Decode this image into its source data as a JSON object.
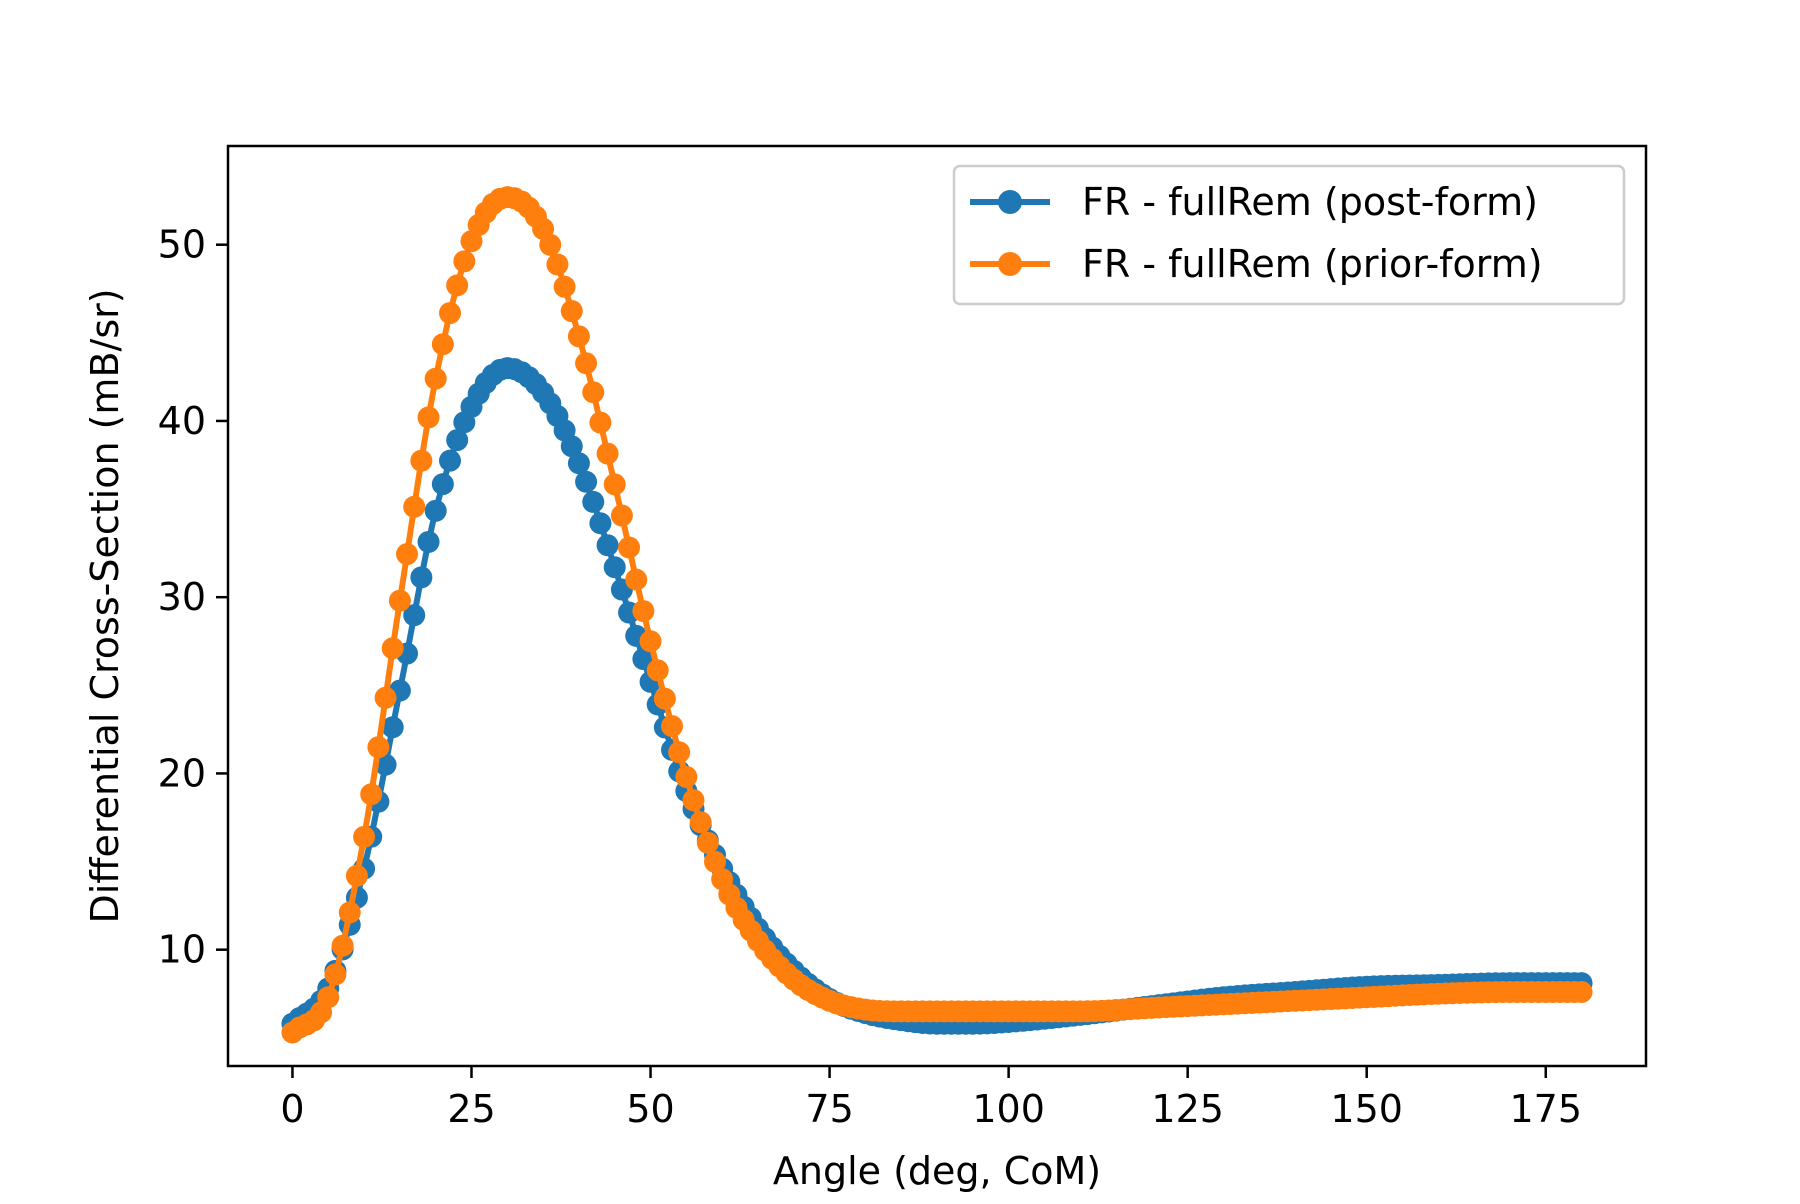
{
  "chart_data": {
    "type": "line",
    "title": "",
    "xlabel": "Angle (deg, CoM)",
    "ylabel": "Differential Cross-Section (mB/sr)",
    "xlim": [
      -9,
      189
    ],
    "ylim": [
      3.4,
      55.6
    ],
    "xticks": [
      0,
      25,
      50,
      75,
      100,
      125,
      150,
      175
    ],
    "yticks": [
      10,
      20,
      30,
      40,
      50
    ],
    "grid": false,
    "legend_position": "top-right",
    "series": [
      {
        "name": "FR - fullRem (post-form)",
        "color": "#1f77b4",
        "marker": "circle",
        "x": [
          0,
          5,
          10,
          15,
          20,
          25,
          30,
          35,
          40,
          45,
          50,
          55,
          60,
          65,
          70,
          75,
          80,
          85,
          90,
          95,
          100,
          110,
          120,
          130,
          140,
          150,
          160,
          170,
          180
        ],
        "y": [
          5.8,
          7.8,
          14.6,
          24.7,
          34.9,
          40.8,
          43.0,
          41.6,
          37.6,
          31.7,
          25.2,
          19.0,
          14.6,
          11.2,
          8.8,
          7.2,
          6.4,
          6.0,
          5.8,
          5.8,
          5.9,
          6.3,
          6.8,
          7.3,
          7.6,
          7.9,
          8.0,
          8.1,
          8.1
        ]
      },
      {
        "name": "FR - fullRem (prior-form)",
        "color": "#ff7f0e",
        "marker": "circle",
        "x": [
          0,
          5,
          10,
          15,
          20,
          25,
          30,
          35,
          40,
          45,
          50,
          55,
          60,
          65,
          70,
          75,
          80,
          85,
          90,
          95,
          100,
          110,
          120,
          130,
          140,
          150,
          160,
          170,
          180
        ],
        "y": [
          5.3,
          7.3,
          16.4,
          29.8,
          42.4,
          50.2,
          52.7,
          50.9,
          44.8,
          36.4,
          27.5,
          19.8,
          14.0,
          10.5,
          8.3,
          7.1,
          6.6,
          6.5,
          6.5,
          6.5,
          6.5,
          6.5,
          6.7,
          6.9,
          7.1,
          7.3,
          7.5,
          7.6,
          7.6
        ]
      }
    ]
  }
}
